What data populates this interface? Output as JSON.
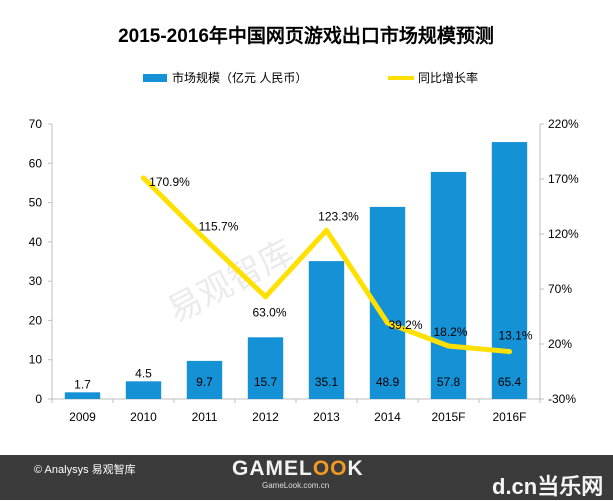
{
  "chart_data": {
    "type": "bar+line",
    "title": "2015-2016年中国网页游戏出口市场规模预测",
    "categories": [
      "2009",
      "2010",
      "2011",
      "2012",
      "2013",
      "2014",
      "2015F",
      "2016F"
    ],
    "series": [
      {
        "name": "市场规模（亿元 人民币）",
        "type": "bar",
        "axis": "left",
        "values": [
          1.7,
          4.5,
          9.7,
          15.7,
          35.1,
          48.9,
          57.8,
          65.4
        ],
        "labels": [
          "1.7",
          "4.5",
          "9.7",
          "15.7",
          "35.1",
          "48.9",
          "57.8",
          "65.4"
        ],
        "color": "#1591d6"
      },
      {
        "name": "同比增长率",
        "type": "line",
        "axis": "right",
        "values": [
          null,
          170.9,
          115.7,
          63.0,
          123.3,
          39.2,
          18.2,
          13.1
        ],
        "labels": [
          "",
          "170.9%",
          "115.7%",
          "63.0%",
          "123.3%",
          "39.2%",
          "18.2%",
          "13.1%"
        ],
        "color": "#ffe000"
      }
    ],
    "y_left": {
      "min": 0,
      "max": 70,
      "ticks": [
        "0",
        "10",
        "20",
        "30",
        "40",
        "50",
        "60",
        "70"
      ]
    },
    "y_right": {
      "min": -30,
      "max": 220,
      "ticks": [
        "-30%",
        "20%",
        "70%",
        "120%",
        "170%",
        "220%"
      ]
    },
    "legend_position": "top",
    "grid": false
  },
  "watermark": "易观智库",
  "footer": {
    "source": "© Analysys 易观智库",
    "logo_main": "GAMEL",
    "logo_o": "OO",
    "logo_end": "K",
    "logo_sub": "GameLook.com.cn",
    "site_mark": "d.cn当乐网"
  },
  "colors": {
    "footer_bg": "#3b3b3b",
    "bar": "#1591d6",
    "line": "#ffe000"
  }
}
